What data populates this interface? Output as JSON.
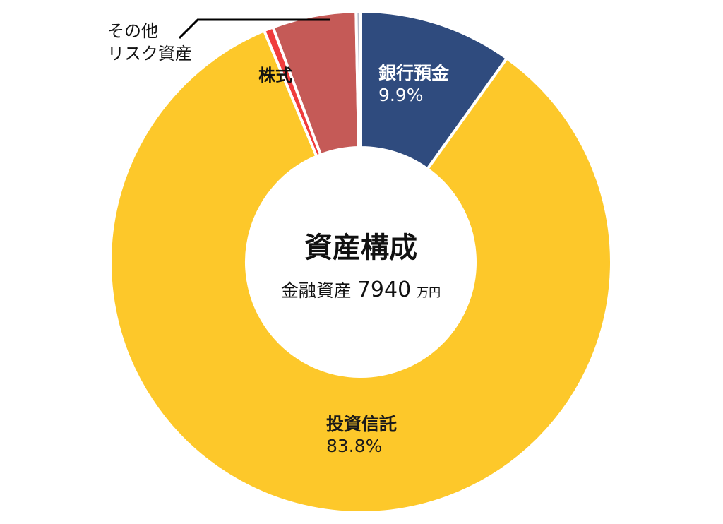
{
  "chart_data": {
    "type": "pie",
    "variant": "donut",
    "title": "資産構成",
    "subtitle": "金融資産 7940 万円",
    "center": {
      "title": "資産構成",
      "label": "金融資産",
      "value": "7940",
      "unit": "万円"
    },
    "categories": [
      "銀行預金",
      "投資信託",
      "その他リスク資産",
      "株式",
      "その他"
    ],
    "values": [
      9.9,
      83.8,
      0.6,
      5.4,
      0.3
    ],
    "colors": [
      "#2F4B7E",
      "#FDC82A",
      "#F03C3C",
      "#C55A57",
      "#B7BCCB"
    ],
    "labels": {
      "bank": {
        "name": "銀行預金",
        "pct": "9.9%"
      },
      "trust": {
        "name": "投資信託",
        "pct": "83.8%"
      },
      "stock": {
        "name": "株式"
      },
      "other_risk": {
        "line1": "その他",
        "line2": "リスク資産"
      }
    },
    "start_angle_deg": 0,
    "direction": "clockwise",
    "legend": "none",
    "grid": false
  }
}
